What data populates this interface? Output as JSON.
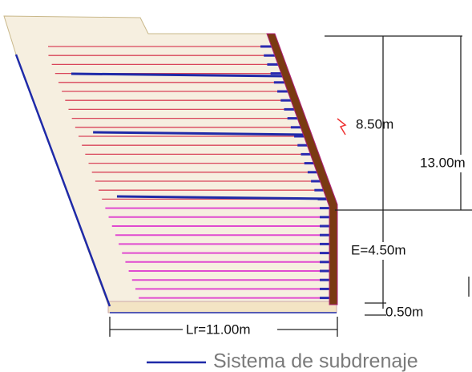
{
  "dimensions": {
    "upper_height": "8.50m",
    "total_height": "13.00m",
    "embedded_height": "E=4.50m",
    "base_thickness": "0.50m",
    "reinforcement_length": "Lr=11.00m"
  },
  "legend": {
    "label": "Sistema de subdrenaje"
  }
}
